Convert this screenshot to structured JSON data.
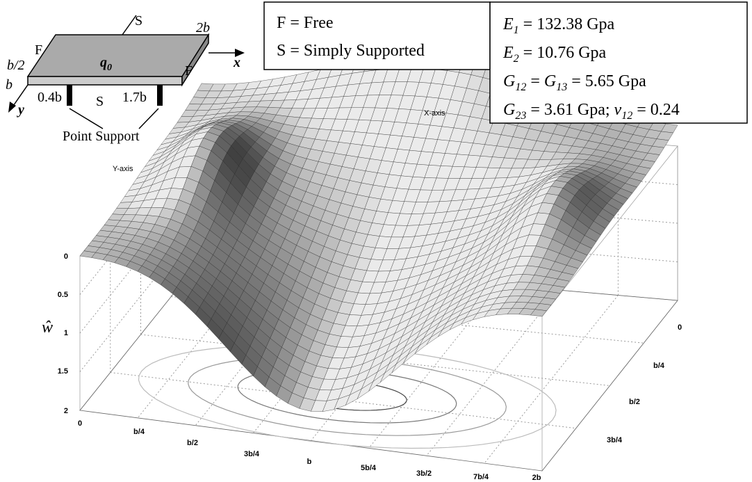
{
  "plate_diagram": {
    "edge_top": "S",
    "length": "2b",
    "edge_left": "F",
    "x_axis": "x",
    "half_width": "b/2",
    "load": "q",
    "load_subscript": "0",
    "edge_right": "F",
    "width": "b",
    "support_1": "0.4b",
    "edge_bottom": "S",
    "support_2": "1.7b",
    "y_axis": "y",
    "support_label": "Point Support"
  },
  "legend": [
    "F = Free",
    "S = Simply Supported"
  ],
  "properties": [
    [
      "E",
      "1",
      " = 132.38 Gpa"
    ],
    [
      "E",
      "2",
      " = 10.76 Gpa"
    ],
    [
      "G",
      "12",
      " = ",
      "G",
      "13",
      " = 5.65 Gpa"
    ],
    [
      "G",
      "23",
      " = 3.61 Gpa; ",
      "v",
      "12",
      " = 0.24"
    ]
  ],
  "plot": {
    "x_axis_title": "X-axis",
    "y_axis_title": "Y-axis",
    "z_axis_title": "ŵ",
    "z_ticks": [
      "0",
      "0.5",
      "1",
      "1.5",
      "2"
    ],
    "x_ticks": [
      "0",
      "b/4",
      "b/2",
      "3b/4",
      "b",
      "5b/4",
      "3b/2",
      "7b/4",
      "2b"
    ],
    "y_ticks": [
      "0",
      "b/4",
      "b/2",
      "3b/4"
    ]
  }
}
